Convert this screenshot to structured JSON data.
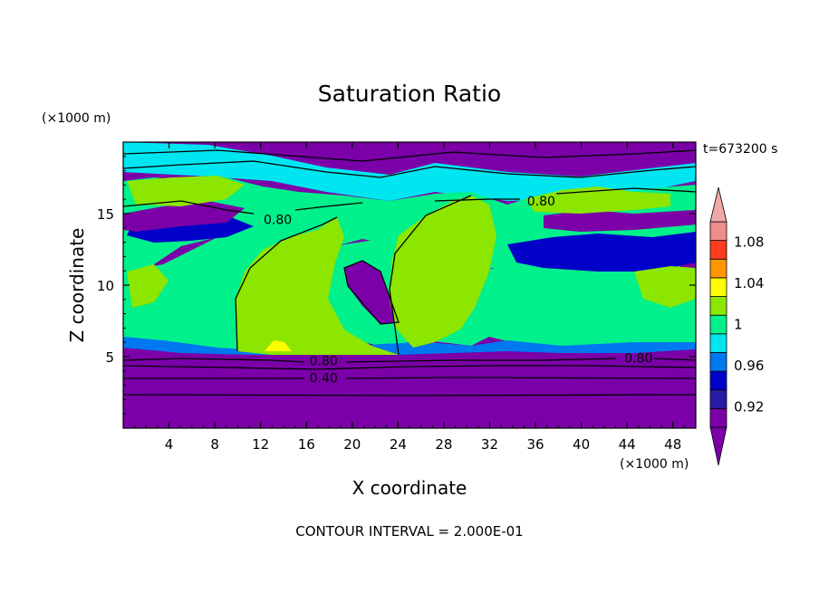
{
  "chart_data": {
    "type": "heatmap",
    "title": "Saturation Ratio",
    "xlabel": "X coordinate",
    "ylabel": "Z coordinate",
    "x_unit_label": "(×1000 m)",
    "y_unit_label": "(×1000 m)",
    "time_label": "t=673200 s",
    "footer": "CONTOUR INTERVAL = 2.000E-01",
    "xlim": [
      0,
      50
    ],
    "ylim": [
      0,
      20
    ],
    "x_ticks": [
      4,
      8,
      12,
      16,
      20,
      24,
      28,
      32,
      36,
      40,
      44,
      48
    ],
    "x_tick_labels": [
      "4",
      "8",
      "12",
      "16",
      "20",
      "24",
      "28",
      "32",
      "36",
      "40",
      "44",
      "48"
    ],
    "y_ticks": [
      5,
      10,
      15
    ],
    "y_tick_labels": [
      "5",
      "10",
      "15"
    ],
    "colorbar": {
      "levels": [
        0.9,
        0.92,
        0.94,
        0.96,
        0.98,
        1.0,
        1.02,
        1.04,
        1.06,
        1.08,
        1.1
      ],
      "colors": [
        "#7b00a8",
        "#2a1aa8",
        "#0000c8",
        "#0078f0",
        "#00e6f0",
        "#00f08c",
        "#8ce600",
        "#ffff00",
        "#ff9600",
        "#ff3c1e",
        "#f08c8c"
      ],
      "tick_values": [
        0.92,
        0.96,
        1.0,
        1.04,
        1.08
      ],
      "tick_labels": [
        "0.92",
        "0.96",
        "1",
        "1.04",
        "1.08"
      ],
      "extend": "both"
    },
    "contour_labels": [
      {
        "text": "0.80",
        "x": 17.5,
        "z": 4.7
      },
      {
        "text": "0.40",
        "x": 17.5,
        "z": 3.5
      },
      {
        "text": "0.80",
        "x": 45.0,
        "z": 4.9
      },
      {
        "text": "0.80",
        "x": 13.5,
        "z": 14.6
      },
      {
        "text": "0.80",
        "x": 36.5,
        "z": 15.9
      }
    ]
  }
}
